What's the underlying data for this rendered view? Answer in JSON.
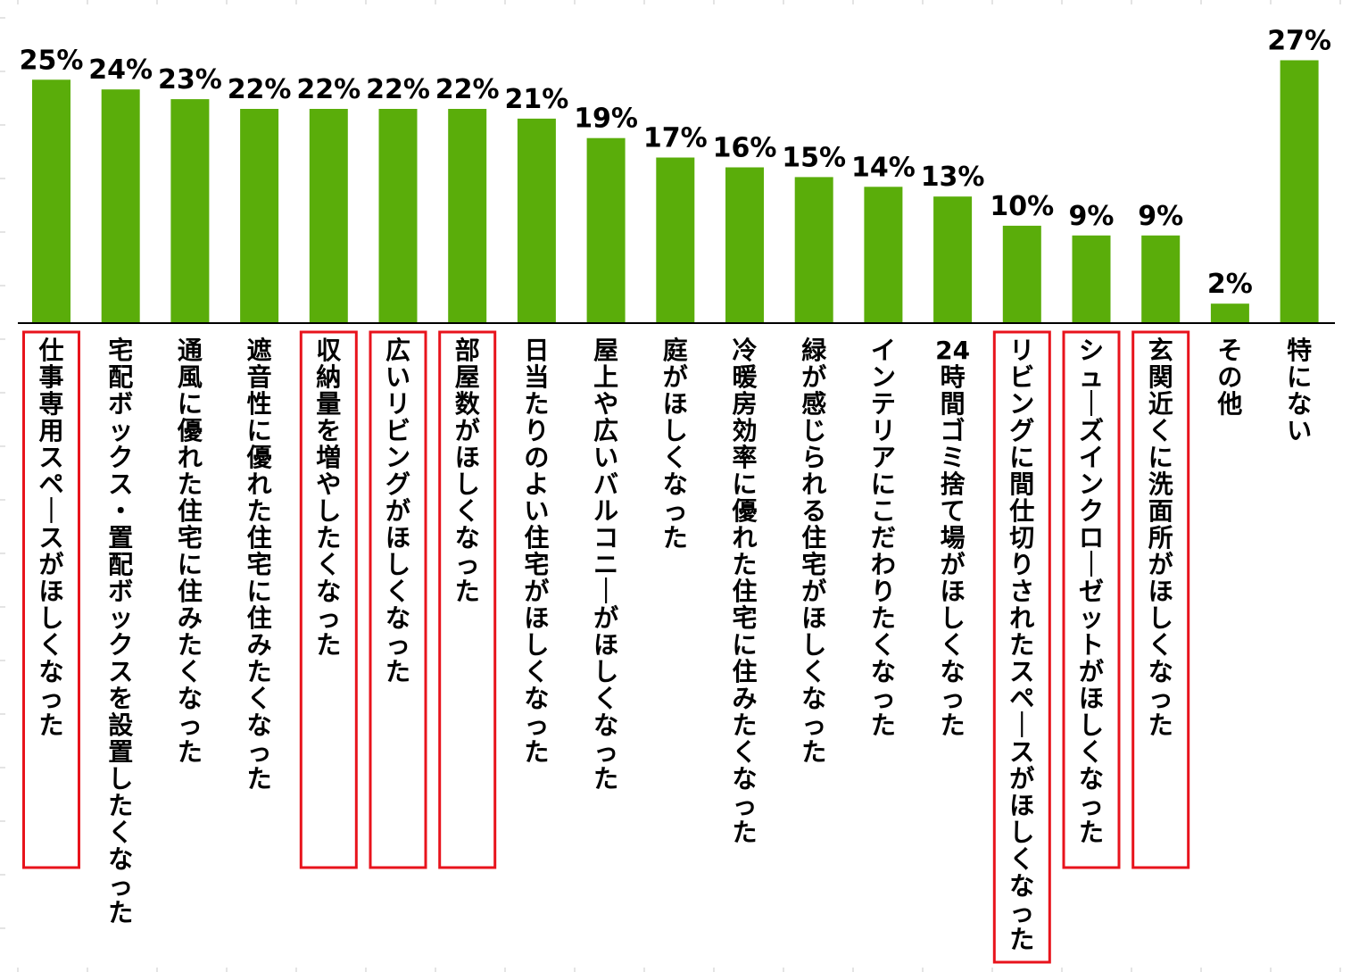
{
  "chart_data": {
    "type": "bar",
    "categories": [
      "仕事専用スペースがほしくなった",
      "宅配ボックス・置配ボックスを設置したくなった",
      "通風に優れた住宅に住みたくなった",
      "遮音性に優れた住宅に住みたくなった",
      "収納量を増やしたくなった",
      "広いリビングがほしくなった",
      "部屋数がほしくなった",
      "日当たりのよい住宅がほしくなった",
      "屋上や広いバルコニーがほしくなった",
      "庭がほしくなった",
      "冷暖房効率に優れた住宅に住みたくなった",
      "緑が感じられる住宅がほしくなった",
      "インテリアにこだわりたくなった",
      "24時間ゴミ捨て場がほしくなった",
      "リビングに間仕切りされたスペースがほしくなった",
      "シューズインクローゼットがほしくなった",
      "玄関近くに洗面所がほしくなった",
      "その他",
      "特にない"
    ],
    "values": [
      25,
      24,
      23,
      22,
      22,
      22,
      22,
      21,
      19,
      17,
      16,
      15,
      14,
      13,
      10,
      9,
      9,
      2,
      27
    ],
    "labels": [
      "25%",
      "24%",
      "23%",
      "22%",
      "22%",
      "22%",
      "22%",
      "21%",
      "19%",
      "17%",
      "16%",
      "15%",
      "14%",
      "13%",
      "10%",
      "9%",
      "9%",
      "2%",
      "27%"
    ],
    "highlighted": [
      true,
      false,
      false,
      false,
      true,
      true,
      true,
      false,
      false,
      false,
      false,
      false,
      false,
      false,
      true,
      true,
      true,
      false,
      false
    ],
    "unit": "%",
    "ylim": [
      0,
      27.5
    ],
    "grid": false,
    "legend": "none",
    "bar_color": "#5aad0a",
    "highlight_color": "#e8131c"
  }
}
